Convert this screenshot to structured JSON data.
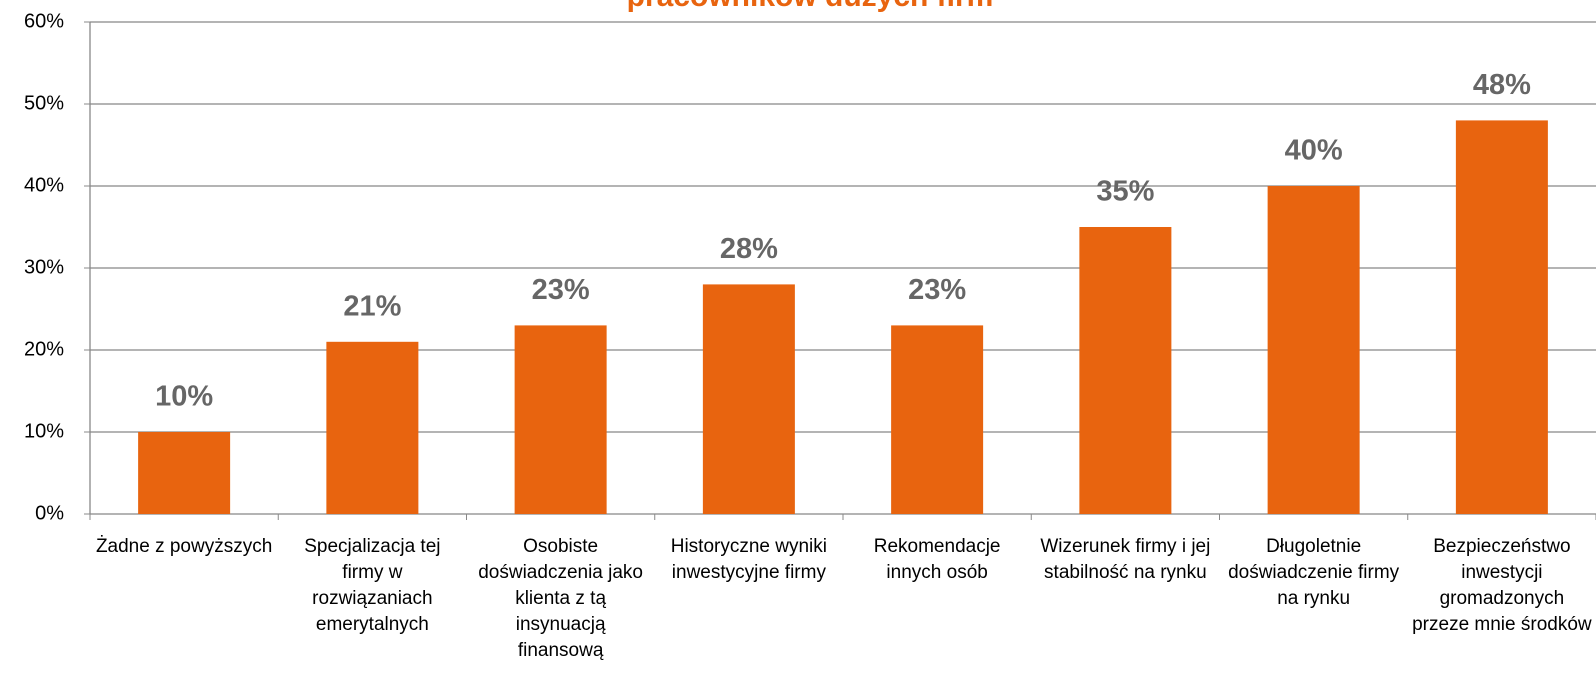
{
  "chart_data": {
    "type": "bar",
    "title": "pracowników dużych firm",
    "categories": [
      "Żadne z powyższych",
      "Specjalizacja tej firmy w rozwiązaniach emerytalnych",
      "Osobiste doświadczenia jako klienta z tą insynuacją finansową",
      "Historyczne wyniki inwestycyjne firmy",
      "Rekomendacje innych osób",
      "Wizerunek firmy i jej stabilność na rynku",
      "Długoletnie doświadczenie firmy na rynku",
      "Bezpieczeństwo inwestycji gromadzonych przeze mnie środków"
    ],
    "values": [
      10,
      21,
      23,
      28,
      23,
      35,
      40,
      48
    ],
    "value_labels": [
      "10%",
      "21%",
      "23%",
      "28%",
      "23%",
      "35%",
      "40%",
      "48%"
    ],
    "color": "#e8640f",
    "ylim": [
      0,
      60
    ],
    "yticks": [
      {
        "value": 0,
        "label": "0%"
      },
      {
        "value": 10,
        "label": "10%"
      },
      {
        "value": 20,
        "label": "20%"
      },
      {
        "value": 30,
        "label": "30%"
      },
      {
        "value": 40,
        "label": "40%"
      },
      {
        "value": 50,
        "label": "50%"
      },
      {
        "value": 60,
        "label": "60%"
      }
    ],
    "grid": true
  }
}
